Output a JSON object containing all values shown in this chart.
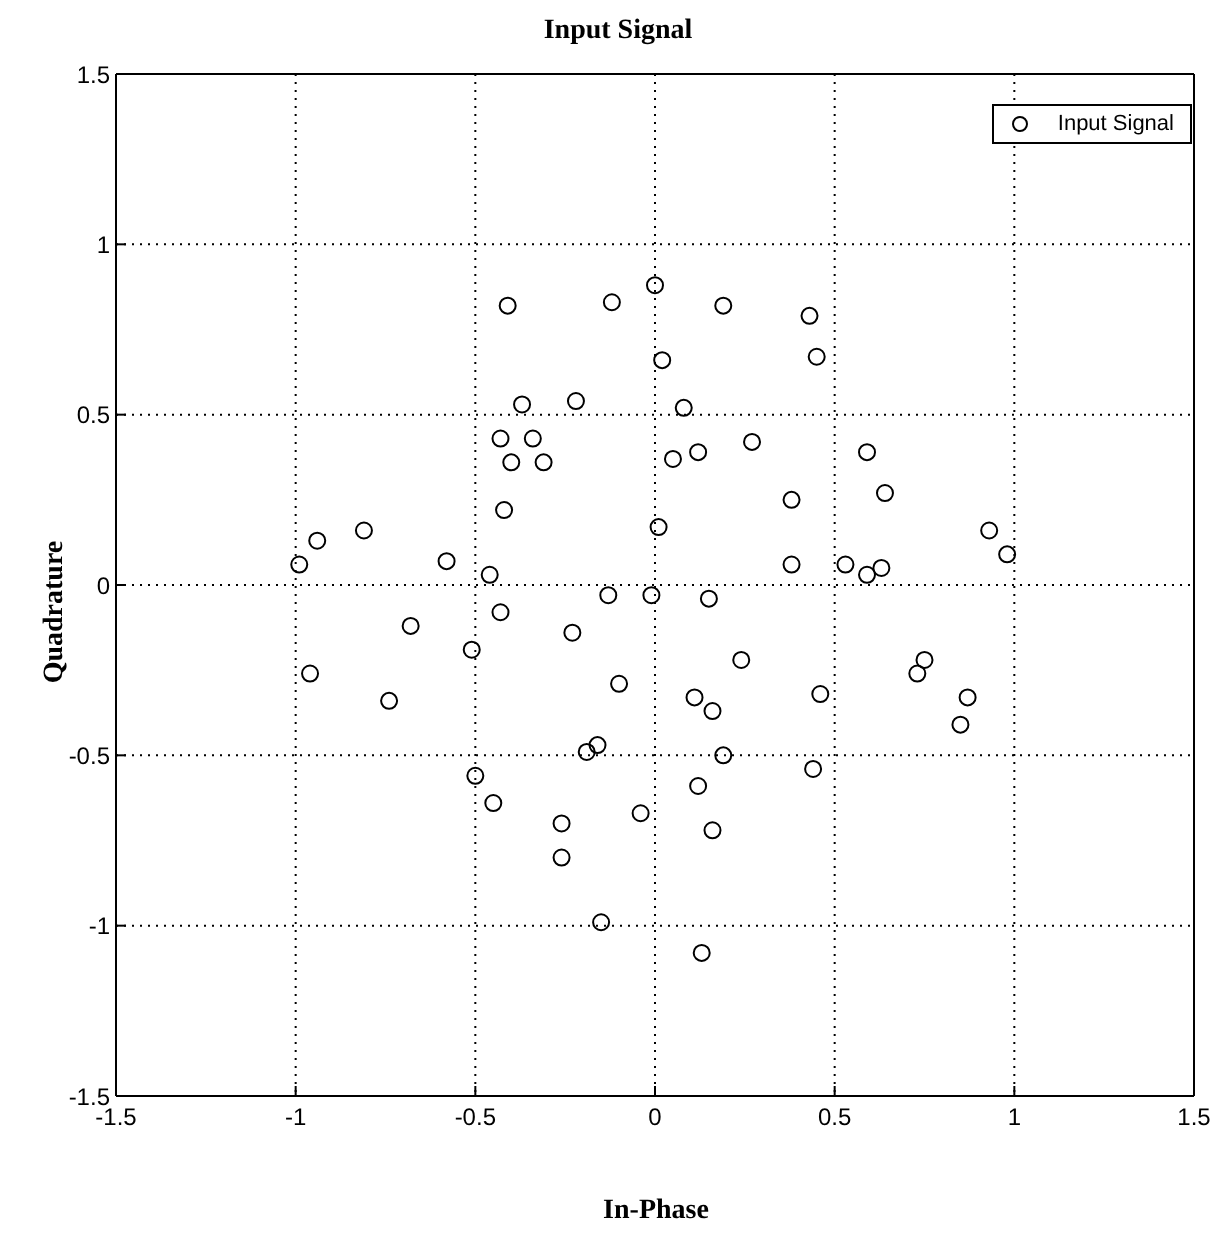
{
  "chart_data": {
    "type": "scatter",
    "title": "Input Signal",
    "xlabel": "In-Phase",
    "ylabel": "Quadrature",
    "xlim": [
      -1.5,
      1.5
    ],
    "ylim": [
      -1.5,
      1.5
    ],
    "xticks": [
      -1.5,
      -1,
      -0.5,
      0,
      0.5,
      1,
      1.5
    ],
    "yticks": [
      -1.5,
      -1,
      -0.5,
      0,
      0.5,
      1,
      1.5
    ],
    "grid": true,
    "legend": "top right",
    "marker": "circle",
    "series": [
      {
        "name": "Input Signal",
        "color": "#000000",
        "x": [
          -0.41,
          -0.12,
          -0.37,
          -0.22,
          -0.43,
          -0.34,
          -0.4,
          -0.31,
          -0.42,
          -0.81,
          -0.94,
          -0.99,
          -0.58,
          -0.46,
          -0.13,
          -0.01,
          -0.43,
          -0.68,
          -0.23,
          -0.51,
          -0.96,
          -0.1,
          -0.74,
          -0.16,
          -0.19,
          -0.5,
          -0.45,
          -0.04,
          -0.26,
          -0.26,
          -0.15,
          0.0,
          0.19,
          0.43,
          0.02,
          0.45,
          0.08,
          0.05,
          0.12,
          0.27,
          0.59,
          0.38,
          0.64,
          0.01,
          0.93,
          0.98,
          0.38,
          0.53,
          0.59,
          0.63,
          0.15,
          0.24,
          0.46,
          0.11,
          0.16,
          0.75,
          0.73,
          0.87,
          0.85,
          0.19,
          0.44,
          0.12,
          0.16,
          0.13
        ],
        "values": [
          0.82,
          0.83,
          0.53,
          0.54,
          0.43,
          0.43,
          0.36,
          0.36,
          0.22,
          0.16,
          0.13,
          0.06,
          0.07,
          0.03,
          -0.03,
          -0.03,
          -0.08,
          -0.12,
          -0.14,
          -0.19,
          -0.26,
          -0.29,
          -0.34,
          -0.47,
          -0.49,
          -0.56,
          -0.64,
          -0.67,
          -0.7,
          -0.8,
          -0.99,
          0.88,
          0.82,
          0.79,
          0.66,
          0.67,
          0.52,
          0.37,
          0.39,
          0.42,
          0.39,
          0.25,
          0.27,
          0.17,
          0.16,
          0.09,
          0.06,
          0.06,
          0.03,
          0.05,
          -0.04,
          -0.22,
          -0.32,
          -0.33,
          -0.37,
          -0.22,
          -0.26,
          -0.33,
          -0.41,
          -0.5,
          -0.54,
          -0.59,
          -0.72,
          -1.08
        ]
      }
    ]
  }
}
